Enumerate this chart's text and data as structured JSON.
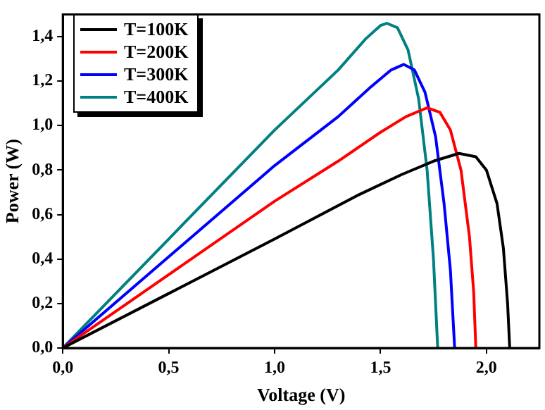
{
  "chart_data": {
    "type": "line",
    "xlabel": "Voltage (V)",
    "ylabel": "Power (W)",
    "xlim": [
      0,
      2.25
    ],
    "xticks": [
      {
        "value": 0,
        "label": "0,0"
      },
      {
        "value": 0.5,
        "label": "0,5"
      },
      {
        "value": 1,
        "label": "1,0"
      },
      {
        "value": 1.5,
        "label": "1,5"
      },
      {
        "value": 2,
        "label": "2,0"
      }
    ],
    "ylim": [
      0,
      1.5
    ],
    "yticks": [
      {
        "value": 0,
        "label": "0,0"
      },
      {
        "value": 0.2,
        "label": "0,2"
      },
      {
        "value": 0.4,
        "label": "0,4"
      },
      {
        "value": 0.6,
        "label": "0,6"
      },
      {
        "value": 0.8,
        "label": "0,8"
      },
      {
        "value": 1,
        "label": "1,0"
      },
      {
        "value": 1.2,
        "label": "1,2"
      },
      {
        "value": 1.4,
        "label": "1,4"
      }
    ],
    "grid": false,
    "legend": "top left",
    "marker": "none",
    "line_style": "solid",
    "series": [
      {
        "name": "T=100K",
        "color": "#000000",
        "x": [
          0,
          0.5,
          1.0,
          1.4,
          1.6,
          1.75,
          1.87,
          1.95,
          2.0,
          2.05,
          2.08,
          2.1,
          2.11
        ],
        "values": [
          0,
          0.245,
          0.49,
          0.69,
          0.78,
          0.84,
          0.875,
          0.86,
          0.8,
          0.65,
          0.45,
          0.2,
          0
        ]
      },
      {
        "name": "T=200K",
        "color": "#ff0000",
        "x": [
          0,
          0.5,
          1.0,
          1.3,
          1.5,
          1.62,
          1.72,
          1.78,
          1.83,
          1.88,
          1.92,
          1.94,
          1.95
        ],
        "values": [
          0,
          0.33,
          0.66,
          0.84,
          0.97,
          1.04,
          1.08,
          1.06,
          0.98,
          0.8,
          0.5,
          0.25,
          0
        ]
      },
      {
        "name": "T=300K",
        "color": "#0000ff",
        "x": [
          0,
          0.5,
          1.0,
          1.3,
          1.45,
          1.55,
          1.61,
          1.66,
          1.71,
          1.76,
          1.8,
          1.83,
          1.85
        ],
        "values": [
          0,
          0.41,
          0.82,
          1.04,
          1.17,
          1.25,
          1.275,
          1.25,
          1.15,
          0.95,
          0.65,
          0.35,
          0
        ]
      },
      {
        "name": "T=400K",
        "color": "#008080",
        "x": [
          0,
          0.5,
          1.0,
          1.3,
          1.43,
          1.5,
          1.53,
          1.58,
          1.63,
          1.68,
          1.72,
          1.75,
          1.77
        ],
        "values": [
          0,
          0.49,
          0.98,
          1.25,
          1.39,
          1.45,
          1.46,
          1.44,
          1.34,
          1.12,
          0.8,
          0.4,
          0
        ]
      }
    ]
  }
}
